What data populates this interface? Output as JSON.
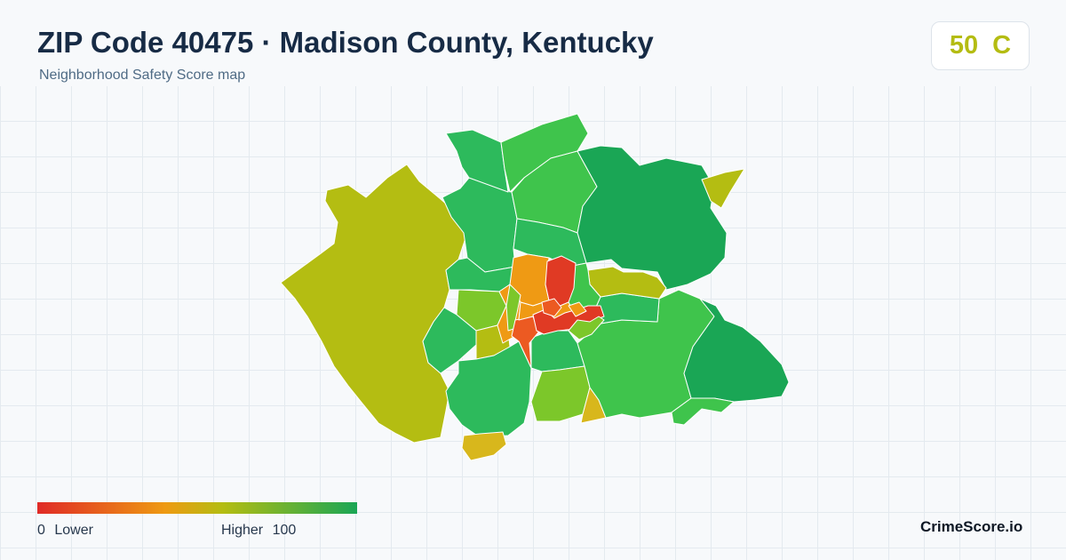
{
  "header": {
    "title": "ZIP Code 40475 · Madison County, Kentucky",
    "subtitle": "Neighborhood Safety Score map"
  },
  "score_badge": {
    "score": "50",
    "grade": "C",
    "color": "#b4bc12"
  },
  "legend": {
    "min_value": "0",
    "min_label": "Lower",
    "max_label": "Higher",
    "max_value": "100",
    "gradient_colors": [
      "#e02a26",
      "#ee9a12",
      "#b4bd12",
      "#1aa655"
    ]
  },
  "brand": "CrimeScore.io",
  "palette": {
    "dark_green": "#1aa655",
    "green": "#2dba5c",
    "light_green": "#3fc44c",
    "lime": "#7cc72a",
    "olive": "#b4bd12",
    "yellow": "#d8b71c",
    "orange": "#ef9a14",
    "red_orange": "#ec5a22",
    "red": "#e03a24"
  }
}
